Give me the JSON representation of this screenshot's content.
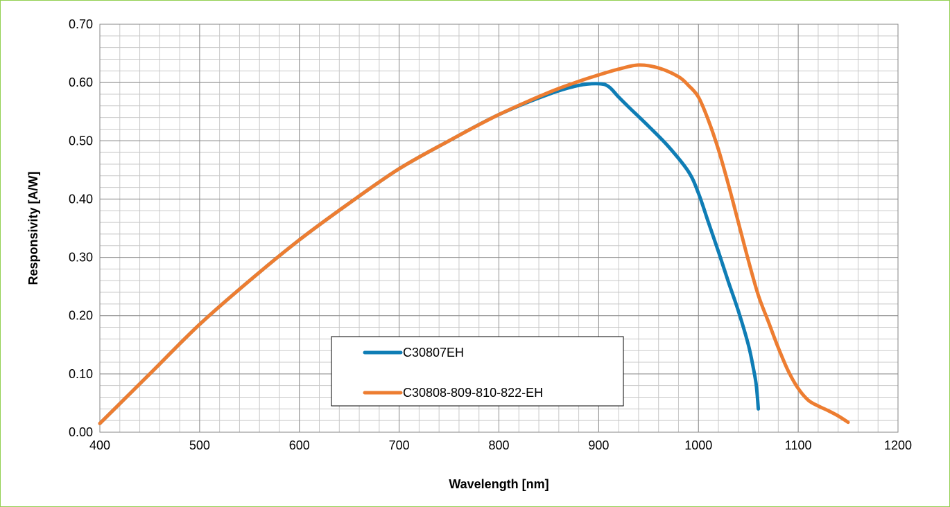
{
  "chart_data": {
    "type": "line",
    "xlabel": "Wavelength [nm]",
    "ylabel": "Responsivity [A/W]",
    "xlim": [
      400,
      1200
    ],
    "ylim": [
      0,
      0.7
    ],
    "x_ticks": [
      "400",
      "500",
      "600",
      "700",
      "800",
      "900",
      "1000",
      "1100",
      "1200"
    ],
    "y_ticks": [
      "0.00",
      "0.10",
      "0.20",
      "0.30",
      "0.40",
      "0.50",
      "0.60",
      "0.70"
    ],
    "grid": true,
    "legend_position": "lower-center",
    "series": [
      {
        "name": "C30807EH",
        "color": "#0f7db5",
        "points": [
          [
            400,
            0.015
          ],
          [
            450,
            0.1
          ],
          [
            500,
            0.185
          ],
          [
            550,
            0.26
          ],
          [
            600,
            0.33
          ],
          [
            650,
            0.393
          ],
          [
            700,
            0.452
          ],
          [
            750,
            0.5
          ],
          [
            800,
            0.545
          ],
          [
            850,
            0.58
          ],
          [
            880,
            0.595
          ],
          [
            900,
            0.598
          ],
          [
            910,
            0.593
          ],
          [
            920,
            0.575
          ],
          [
            930,
            0.558
          ],
          [
            950,
            0.525
          ],
          [
            970,
            0.49
          ],
          [
            990,
            0.447
          ],
          [
            1000,
            0.41
          ],
          [
            1010,
            0.36
          ],
          [
            1020,
            0.31
          ],
          [
            1030,
            0.258
          ],
          [
            1040,
            0.208
          ],
          [
            1050,
            0.15
          ],
          [
            1055,
            0.11
          ],
          [
            1058,
            0.08
          ],
          [
            1060,
            0.04
          ]
        ]
      },
      {
        "name": "C30808-809-810-822-EH",
        "color": "#ed7d31",
        "points": [
          [
            400,
            0.015
          ],
          [
            450,
            0.1
          ],
          [
            500,
            0.185
          ],
          [
            550,
            0.26
          ],
          [
            600,
            0.33
          ],
          [
            650,
            0.393
          ],
          [
            700,
            0.452
          ],
          [
            750,
            0.5
          ],
          [
            800,
            0.545
          ],
          [
            850,
            0.583
          ],
          [
            880,
            0.602
          ],
          [
            900,
            0.613
          ],
          [
            920,
            0.623
          ],
          [
            940,
            0.63
          ],
          [
            960,
            0.625
          ],
          [
            980,
            0.61
          ],
          [
            990,
            0.595
          ],
          [
            1000,
            0.575
          ],
          [
            1010,
            0.535
          ],
          [
            1020,
            0.485
          ],
          [
            1030,
            0.425
          ],
          [
            1040,
            0.36
          ],
          [
            1050,
            0.295
          ],
          [
            1060,
            0.235
          ],
          [
            1070,
            0.19
          ],
          [
            1080,
            0.145
          ],
          [
            1090,
            0.105
          ],
          [
            1100,
            0.075
          ],
          [
            1110,
            0.055
          ],
          [
            1120,
            0.045
          ],
          [
            1130,
            0.037
          ],
          [
            1140,
            0.028
          ],
          [
            1150,
            0.017
          ]
        ]
      }
    ]
  }
}
